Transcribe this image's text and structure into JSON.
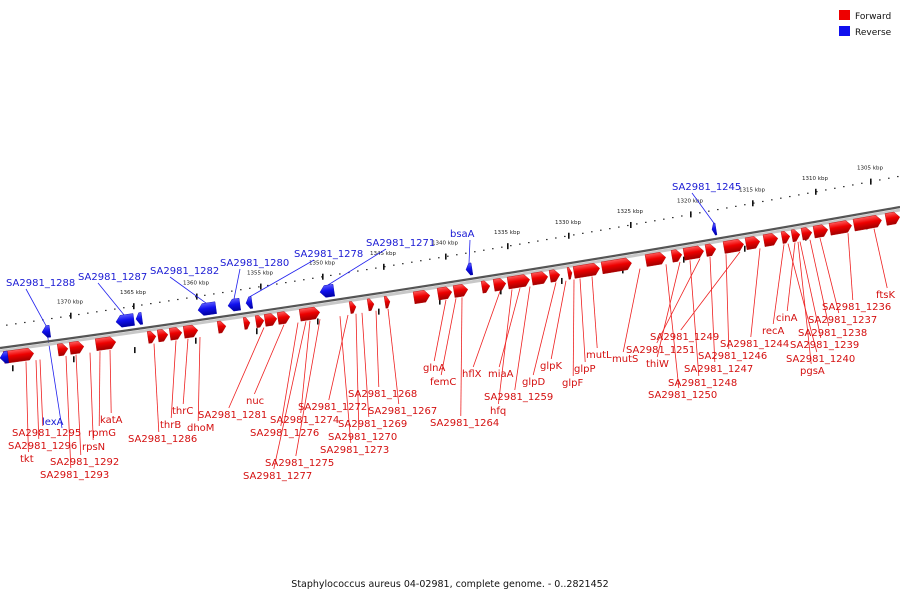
{
  "caption": "Staphylococcus aureus 04-02981, complete genome. - 0..2821452",
  "legend": [
    {
      "label": "Forward",
      "color": "#ee0000"
    },
    {
      "label": "Reverse",
      "color": "#1010ee"
    }
  ],
  "ticks": [
    "1305 kbp",
    "1310 kbp",
    "1315 kbp",
    "1320 kbp",
    "1325 kbp",
    "1330 kbp",
    "1335 kbp",
    "1340 kbp",
    "1345 kbp",
    "1350 kbp",
    "1355 kbp",
    "1360 kbp",
    "1365 kbp",
    "1370 kbp"
  ],
  "reverse_labels": [
    "SA2981_1288",
    "SA2981_1287",
    "SA2981_1282",
    "SA2981_1280",
    "SA2981_1278",
    "SA2981_1271",
    "bsaA",
    "SA2981_1245",
    "lexA"
  ],
  "forward_labels": [
    "ftsK",
    "SA2981_1236",
    "SA2981_1237",
    "SA2981_1238",
    "cinA",
    "SA2981_1239",
    "recA",
    "SA2981_1240",
    "pgsA",
    "SA2981_1244",
    "SA2981_1249",
    "SA2981_1246",
    "SA2981_1251",
    "SA2981_1247",
    "thiW",
    "SA2981_1248",
    "SA2981_1250",
    "mutS",
    "mutL",
    "glpP",
    "glpK",
    "glpF",
    "glpD",
    "SA2981_1259",
    "miaA",
    "hfq",
    "hflX",
    "femC",
    "glnA",
    "SA2981_1264",
    "SA2981_1268",
    "SA2981_1267",
    "SA2981_1269",
    "SA2981_1272",
    "SA2981_1270",
    "SA2981_1274",
    "SA2981_1273",
    "SA2981_1276",
    "SA2981_1275",
    "SA2981_1277",
    "nuc",
    "SA2981_1281",
    "thrC",
    "thrB",
    "dhoM",
    "SA2981_1286",
    "katA",
    "rpmG",
    "rpsN",
    "SA2981_1295",
    "SA2981_1296",
    "tkt",
    "SA2981_1292",
    "SA2981_1293"
  ]
}
